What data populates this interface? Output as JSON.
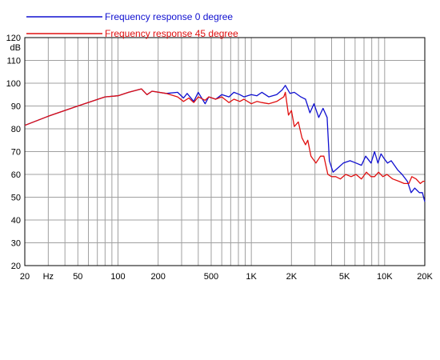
{
  "chart_data": {
    "type": "line",
    "title": "",
    "xlabel": "",
    "ylabel": "dB",
    "xscale": "log",
    "xlim": [
      20,
      20000
    ],
    "ylim": [
      20,
      120
    ],
    "grid": true,
    "legend_position": "top-left",
    "x_ticks": [
      {
        "value": 20,
        "label": "20"
      },
      {
        "value": 30,
        "label": "Hz"
      },
      {
        "value": 50,
        "label": "50"
      },
      {
        "value": 100,
        "label": "100"
      },
      {
        "value": 200,
        "label": "200"
      },
      {
        "value": 500,
        "label": "500"
      },
      {
        "value": 1000,
        "label": "1K"
      },
      {
        "value": 2000,
        "label": "2K"
      },
      {
        "value": 5000,
        "label": "5K"
      },
      {
        "value": 10000,
        "label": "10K"
      },
      {
        "value": 20000,
        "label": "20K"
      }
    ],
    "y_ticks": [
      120,
      110,
      100,
      90,
      80,
      70,
      60,
      50,
      40,
      30,
      20
    ],
    "series": [
      {
        "name": "Frequency response 0 degree",
        "color": "#1010d0",
        "points": [
          [
            20,
            81.5
          ],
          [
            30,
            85.5
          ],
          [
            50,
            90
          ],
          [
            80,
            94
          ],
          [
            100,
            94.5
          ],
          [
            120,
            96
          ],
          [
            150,
            97.5
          ],
          [
            165,
            95
          ],
          [
            180,
            96.5
          ],
          [
            230,
            95.5
          ],
          [
            280,
            96
          ],
          [
            310,
            93.5
          ],
          [
            330,
            95.5
          ],
          [
            370,
            92
          ],
          [
            400,
            96
          ],
          [
            450,
            91
          ],
          [
            480,
            94
          ],
          [
            540,
            93
          ],
          [
            600,
            95
          ],
          [
            680,
            94
          ],
          [
            740,
            96
          ],
          [
            820,
            95
          ],
          [
            880,
            94
          ],
          [
            1000,
            95
          ],
          [
            1100,
            94.5
          ],
          [
            1200,
            96
          ],
          [
            1350,
            94
          ],
          [
            1550,
            95
          ],
          [
            1700,
            97
          ],
          [
            1800,
            99
          ],
          [
            1950,
            95.5
          ],
          [
            2100,
            96
          ],
          [
            2350,
            94
          ],
          [
            2550,
            93
          ],
          [
            2750,
            87
          ],
          [
            2950,
            91
          ],
          [
            3200,
            85
          ],
          [
            3450,
            89
          ],
          [
            3700,
            85
          ],
          [
            3850,
            66
          ],
          [
            4100,
            61
          ],
          [
            4500,
            63
          ],
          [
            4900,
            65
          ],
          [
            5500,
            66
          ],
          [
            6100,
            65
          ],
          [
            6700,
            64
          ],
          [
            7200,
            68
          ],
          [
            7900,
            65
          ],
          [
            8400,
            70
          ],
          [
            8900,
            65
          ],
          [
            9400,
            69
          ],
          [
            9900,
            67
          ],
          [
            10500,
            65
          ],
          [
            11200,
            66
          ],
          [
            12500,
            62
          ],
          [
            13500,
            60
          ],
          [
            14800,
            57
          ],
          [
            15800,
            52
          ],
          [
            16800,
            54
          ],
          [
            18200,
            52
          ],
          [
            19200,
            52
          ],
          [
            20000,
            48
          ]
        ]
      },
      {
        "name": "Frequency response 45 degree",
        "color": "#e01010",
        "points": [
          [
            20,
            81.5
          ],
          [
            30,
            85.5
          ],
          [
            50,
            90
          ],
          [
            80,
            94
          ],
          [
            100,
            94.5
          ],
          [
            120,
            96
          ],
          [
            150,
            97.5
          ],
          [
            165,
            95
          ],
          [
            180,
            96.5
          ],
          [
            230,
            95.5
          ],
          [
            280,
            94
          ],
          [
            310,
            92
          ],
          [
            340,
            93.5
          ],
          [
            370,
            91.5
          ],
          [
            400,
            94
          ],
          [
            450,
            92.5
          ],
          [
            480,
            94
          ],
          [
            540,
            93
          ],
          [
            600,
            94
          ],
          [
            680,
            91.5
          ],
          [
            740,
            93
          ],
          [
            820,
            92
          ],
          [
            880,
            93
          ],
          [
            1000,
            91
          ],
          [
            1100,
            92
          ],
          [
            1200,
            91.5
          ],
          [
            1350,
            91
          ],
          [
            1550,
            92
          ],
          [
            1750,
            94
          ],
          [
            1800,
            96
          ],
          [
            1900,
            86
          ],
          [
            2000,
            88
          ],
          [
            2100,
            81
          ],
          [
            2250,
            83
          ],
          [
            2400,
            76
          ],
          [
            2550,
            73
          ],
          [
            2650,
            75
          ],
          [
            2800,
            68
          ],
          [
            3050,
            65
          ],
          [
            3300,
            68
          ],
          [
            3500,
            68
          ],
          [
            3750,
            60
          ],
          [
            4000,
            59
          ],
          [
            4300,
            59
          ],
          [
            4650,
            58
          ],
          [
            5100,
            60
          ],
          [
            5600,
            59
          ],
          [
            6100,
            60
          ],
          [
            6700,
            58
          ],
          [
            7300,
            61
          ],
          [
            7900,
            59
          ],
          [
            8400,
            59
          ],
          [
            9000,
            61
          ],
          [
            9700,
            59
          ],
          [
            10400,
            60
          ],
          [
            11500,
            58
          ],
          [
            12800,
            57
          ],
          [
            14000,
            56
          ],
          [
            15200,
            56
          ],
          [
            16000,
            59
          ],
          [
            17200,
            58
          ],
          [
            18500,
            56
          ],
          [
            19400,
            57
          ],
          [
            20000,
            57
          ]
        ]
      }
    ]
  }
}
